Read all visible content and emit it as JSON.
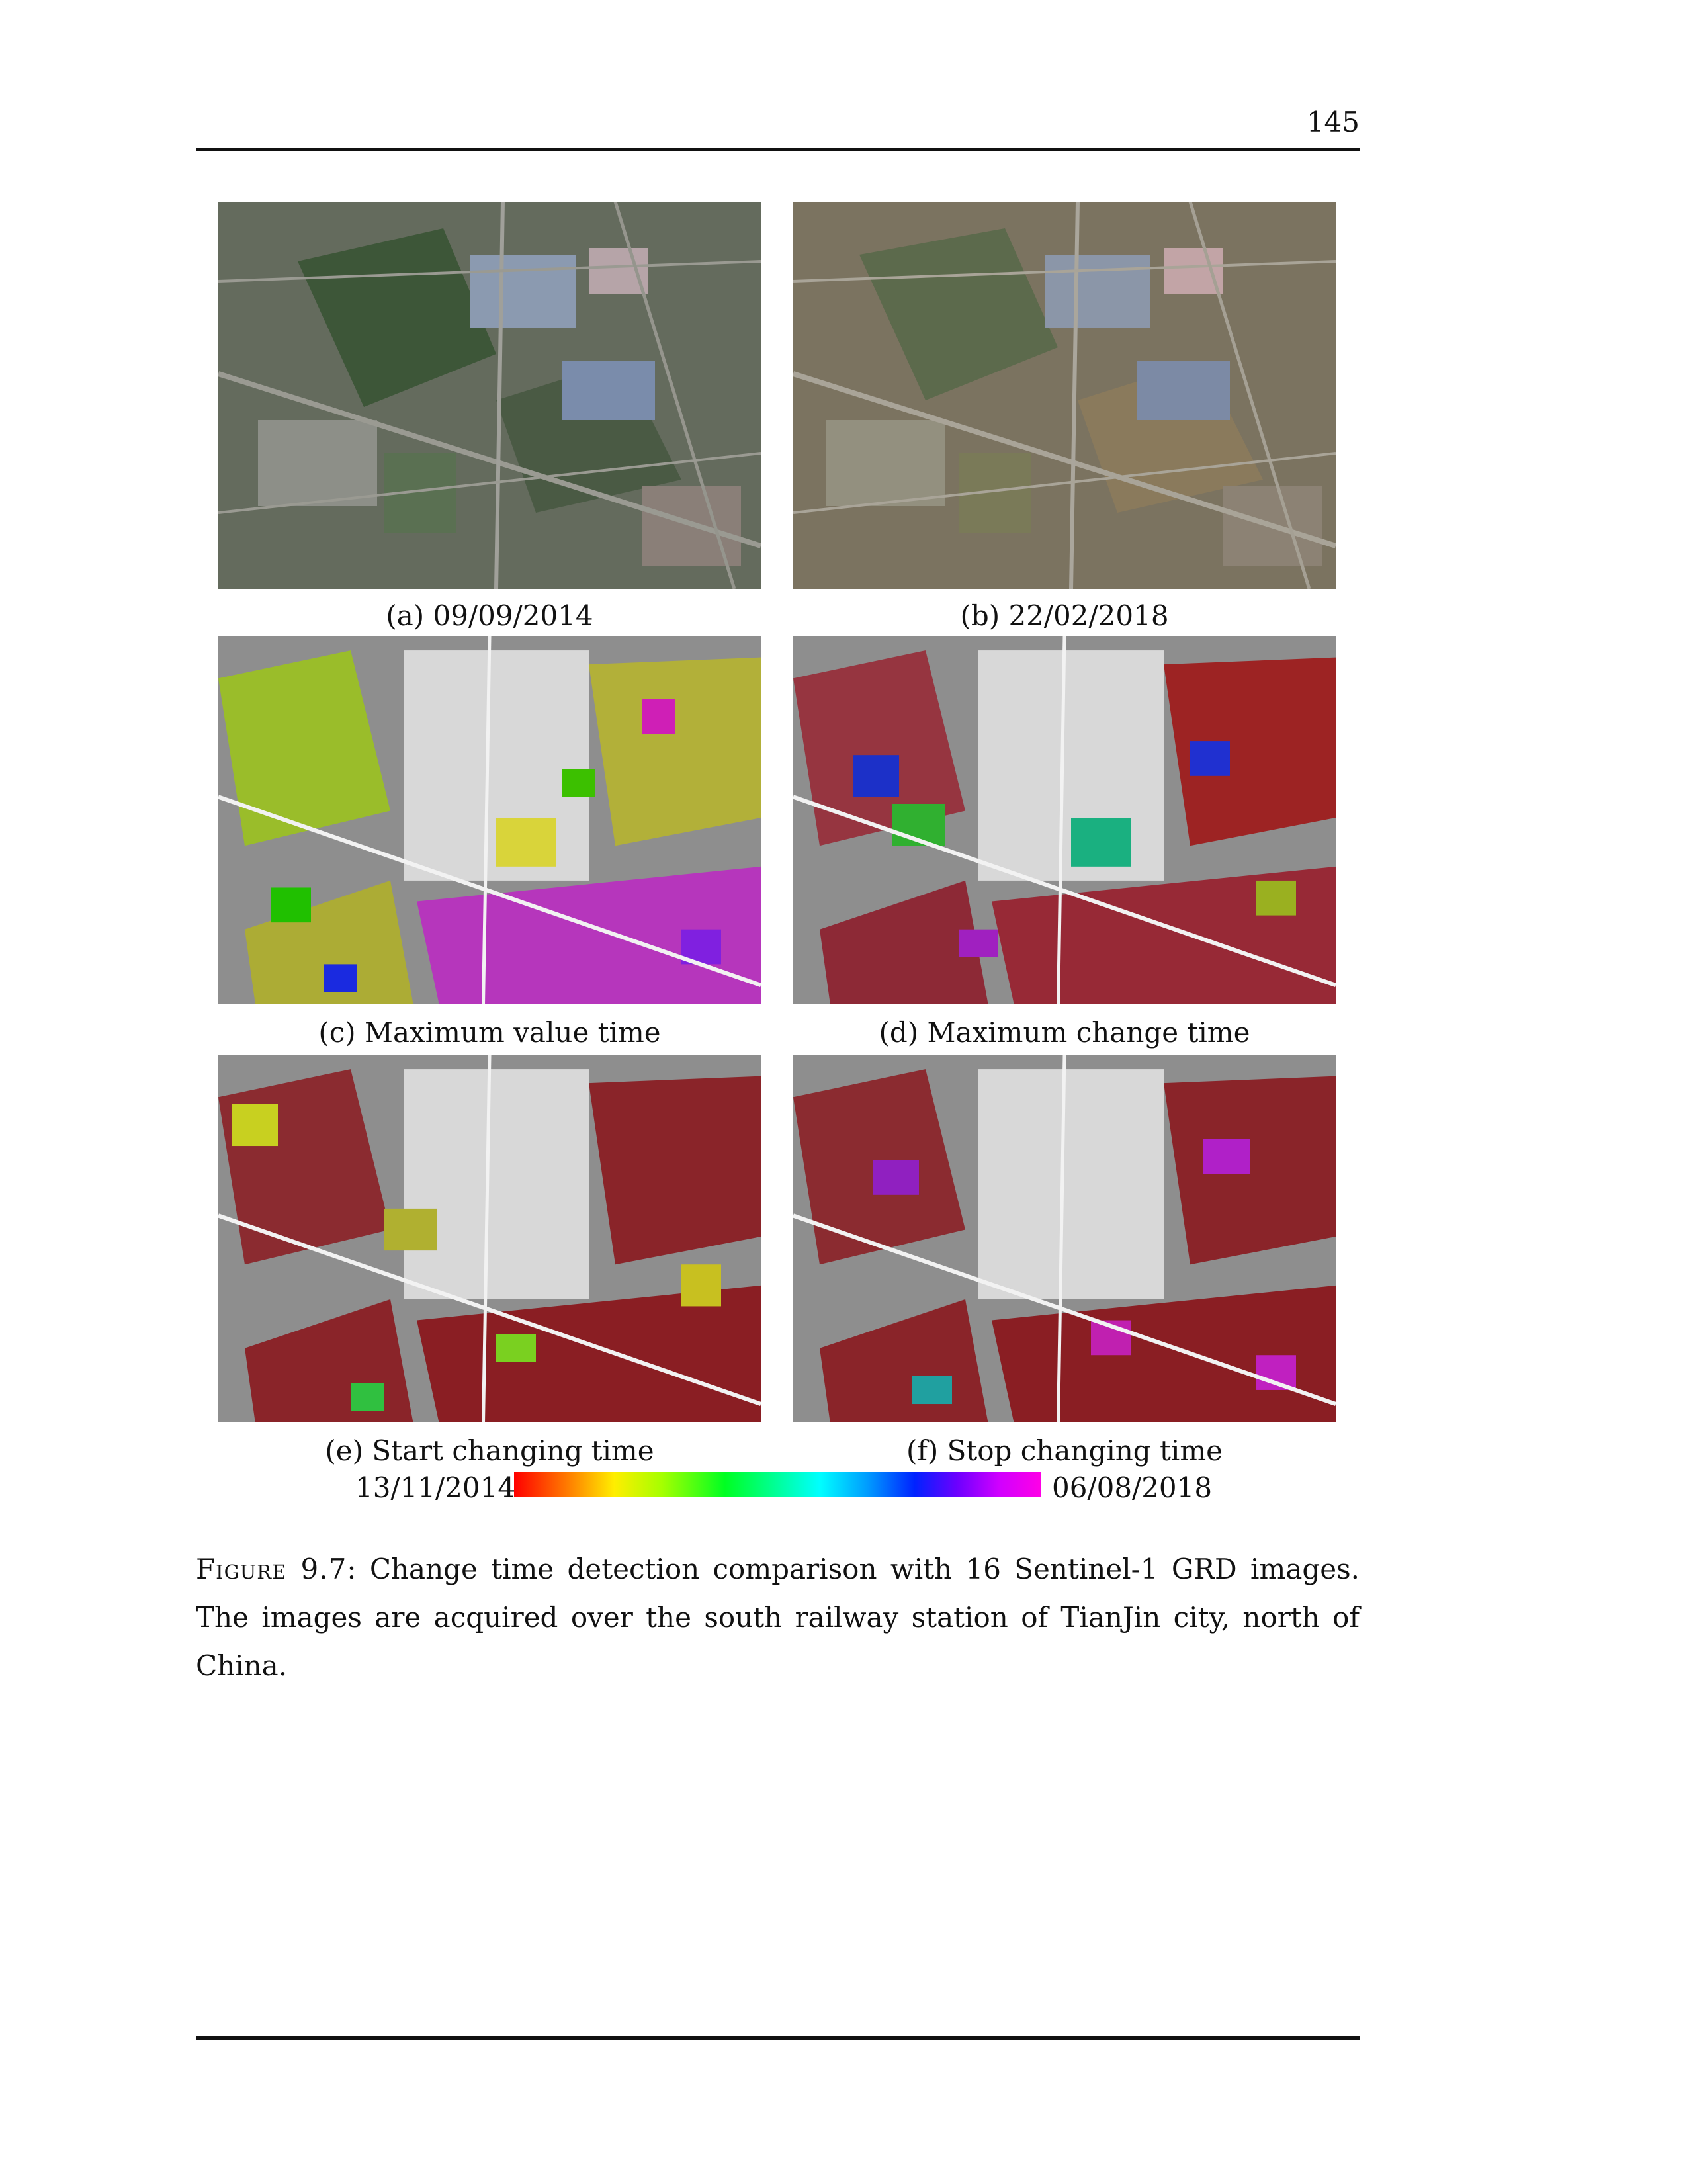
{
  "page_number": "145",
  "panels": {
    "a": {
      "caption": "(a) 09/09/2014"
    },
    "b": {
      "caption": "(b) 22/02/2018"
    },
    "c": {
      "caption": "(c) Maximum value time"
    },
    "d": {
      "caption": "(d) Maximum change time"
    },
    "e": {
      "caption": "(e) Start changing time"
    },
    "f": {
      "caption": "(f) Stop changing time"
    }
  },
  "colorbar": {
    "start_label": "13/11/2014",
    "end_label": "06/08/2018",
    "colors": [
      "#ff0000",
      "#ff7a00",
      "#ffee00",
      "#a6ff00",
      "#00ff22",
      "#00ff9c",
      "#00ffff",
      "#009cff",
      "#0022ff",
      "#6c00ff",
      "#d000ff",
      "#ff00e6"
    ]
  },
  "caption": {
    "label": "Figure 9.7",
    "text": ": Change time detection comparison with 16 Sentinel-1 GRD images. The images are acquired over the south railway station of TianJin city, north of China."
  }
}
